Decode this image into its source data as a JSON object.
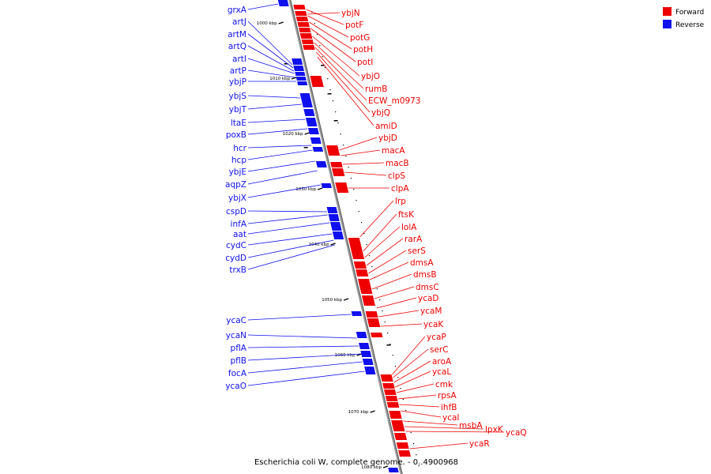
{
  "caption": "Escherichia coli W, complete genome. - 0..4900968",
  "colors": {
    "forward": "#ee0000",
    "reverse": "#1010ee",
    "axis": "#888888"
  },
  "legend": [
    {
      "label": "Forward",
      "color": "#ee0000"
    },
    {
      "label": "Reverse",
      "color": "#1010ee"
    }
  ],
  "ticks": [
    "1000 kbp",
    "1010 kbp",
    "1020 kbp",
    "1030 kbp",
    "1040 kbp",
    "1050 kbp",
    "1060 kbp",
    "1070 kbp",
    "1080 kbp"
  ],
  "reverse_genes": [
    "grxA",
    "artJ",
    "artM",
    "artQ",
    "artI",
    "artP",
    "ybjP",
    "ybjS",
    "ybjT",
    "ltaE",
    "poxB",
    "hcr",
    "hcp",
    "ybjE",
    "aqpZ",
    "ybjX",
    "cspD",
    "infA",
    "aat",
    "cydC",
    "cydD",
    "trxB",
    "ycaC",
    "ycaN",
    "pflA",
    "pflB",
    "focA",
    "ycaO"
  ],
  "forward_genes": [
    "ybjN",
    "potF",
    "potG",
    "potH",
    "potI",
    "ybjO",
    "rumB",
    "ECW_m0973",
    "ybjQ",
    "amiD",
    "ybjD",
    "macA",
    "macB",
    "clpS",
    "clpA",
    "lrp",
    "ftsK",
    "lolA",
    "rarA",
    "serS",
    "dmsA",
    "dmsB",
    "dmsC",
    "ycaD",
    "ycaM",
    "ycaK",
    "ycaP",
    "serC",
    "aroA",
    "ycaL",
    "cmk",
    "rpsA",
    "ihfB",
    "ycaI",
    "msbA",
    "lpxK",
    "ycaQ",
    "ycaR"
  ]
}
